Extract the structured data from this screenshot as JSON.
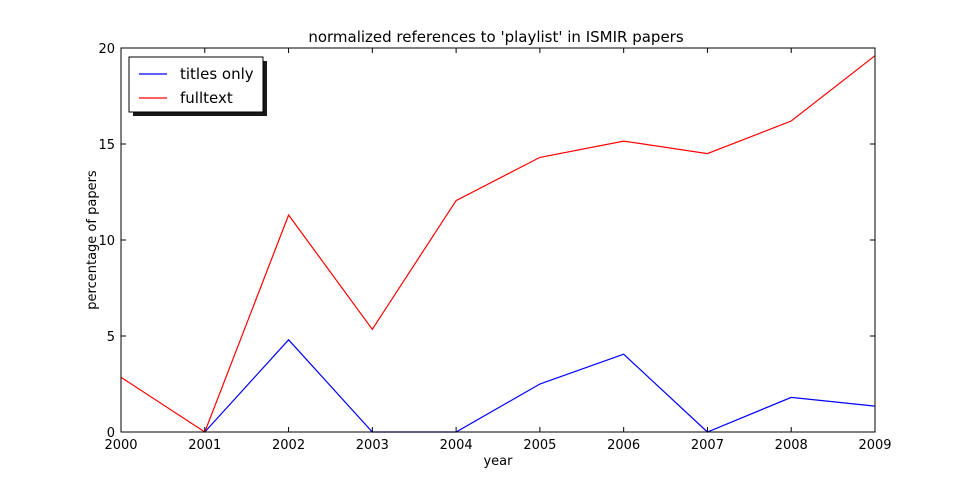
{
  "chart_data": {
    "type": "line",
    "title": "normalized references to 'playlist' in ISMIR papers",
    "xlabel": "year",
    "ylabel": "percentage of papers",
    "x": [
      2000,
      2001,
      2002,
      2003,
      2004,
      2005,
      2006,
      2007,
      2008,
      2009
    ],
    "xlim": [
      2000,
      2009
    ],
    "ylim": [
      0,
      20
    ],
    "xticks": [
      "2000",
      "2001",
      "2002",
      "2003",
      "2004",
      "2005",
      "2006",
      "2007",
      "2008",
      "2009"
    ],
    "yticks": [
      "0",
      "5",
      "10",
      "15",
      "20"
    ],
    "grid": false,
    "legend_position": "top-left",
    "series": [
      {
        "name": "titles only",
        "color": "#0000ff",
        "values": [
          null,
          0,
          4.8,
          0,
          0,
          2.5,
          4.05,
          0,
          1.8,
          1.35
        ]
      },
      {
        "name": "fulltext",
        "color": "#ff0000",
        "values": [
          2.85,
          0,
          11.3,
          5.35,
          12.05,
          14.3,
          15.15,
          14.5,
          16.2,
          19.6
        ]
      }
    ]
  }
}
